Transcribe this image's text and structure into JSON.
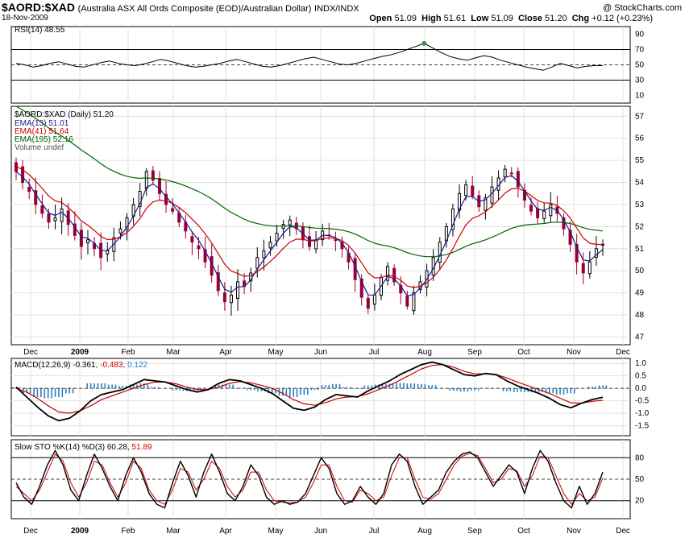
{
  "header": {
    "symbol": "$AORD:$XAD",
    "description": "(Australia ASX All Ords Composite (EOD)/Australian Dollar)",
    "exchange": "INDX/INDX",
    "date": "18-Nov-2009",
    "copyright": "@ StockCharts.com",
    "open_label": "Open",
    "open": "51.09",
    "high_label": "High",
    "high": "51.61",
    "low_label": "Low",
    "low": "51.09",
    "close_label": "Close",
    "close": "51.20",
    "chg_label": "Chg",
    "chg": "+0.12 (+0.23%)"
  },
  "colors": {
    "ema13": "#1a1a8c",
    "ema41": "#cc0000",
    "ema195": "#006400",
    "up": "#000000",
    "down": "#990033",
    "histogram": "#2a7fc0",
    "grid": "#e0e0e0"
  },
  "chart_data": [
    {
      "type": "line",
      "panel": "RSI",
      "legend": "RSI(14) 48.55",
      "ylim": [
        0,
        100
      ],
      "yticks": [
        10,
        30,
        50,
        70,
        90
      ],
      "guides": [
        30,
        50,
        70
      ],
      "series": [
        {
          "name": "RSI(14)",
          "values": [
            52,
            50,
            47,
            49,
            52,
            54,
            51,
            48,
            47,
            50,
            53,
            55,
            52,
            50,
            49,
            51,
            54,
            57,
            55,
            52,
            49,
            47,
            48,
            50,
            52,
            55,
            57,
            54,
            51,
            48,
            47,
            49,
            52,
            55,
            58,
            60,
            57,
            54,
            51,
            50,
            52,
            55,
            58,
            61,
            63,
            66,
            70,
            74,
            78,
            72,
            66,
            61,
            58,
            56,
            59,
            62,
            60,
            56,
            53,
            50,
            47,
            45,
            43,
            47,
            52,
            49,
            46,
            48,
            49,
            49
          ]
        }
      ]
    },
    {
      "type": "candlestick",
      "panel": "Price",
      "legend": "$AORD:$XAD (Daily) 51.20",
      "ylim": [
        47,
        57
      ],
      "yticks": [
        47,
        48,
        49,
        50,
        51,
        52,
        53,
        54,
        55,
        56,
        57
      ],
      "xlabels": [
        "Dec",
        "2009",
        "Feb",
        "Mar",
        "Apr",
        "May",
        "Jun",
        "Jul",
        "Aug",
        "Sep",
        "Oct",
        "Nov",
        "Dec"
      ],
      "closes": [
        54.5,
        54.0,
        53.6,
        53.0,
        52.6,
        52.2,
        52.4,
        52.8,
        52.1,
        51.6,
        51.1,
        51.4,
        51.0,
        50.6,
        50.9,
        51.5,
        51.9,
        52.4,
        53.0,
        53.6,
        54.5,
        54.1,
        53.5,
        53.0,
        52.7,
        52.2,
        51.8,
        51.3,
        51.0,
        50.4,
        49.8,
        49.1,
        48.6,
        48.9,
        49.5,
        49.3,
        49.9,
        50.6,
        50.9,
        51.3,
        51.7,
        52.1,
        52.3,
        51.9,
        51.4,
        51.1,
        51.4,
        51.8,
        51.6,
        51.4,
        51.0,
        50.4,
        49.6,
        48.8,
        48.3,
        48.9,
        49.7,
        50.2,
        49.5,
        49.0,
        48.4,
        49.0,
        49.5,
        50.0,
        50.6,
        51.3,
        52.0,
        52.8,
        53.5,
        53.9,
        53.4,
        52.9,
        53.3,
        53.8,
        54.2,
        54.6,
        54.4,
        53.8,
        53.2,
        52.7,
        52.4,
        52.7,
        53.0,
        52.6,
        51.9,
        51.2,
        50.4,
        49.9,
        50.4,
        51.0,
        51.2
      ],
      "series": [
        {
          "name": "EMA(13)",
          "legend": "EMA(13) 51.01"
        },
        {
          "name": "EMA(41)",
          "legend": "EMA(41) 51.64"
        },
        {
          "name": "EMA(195)",
          "legend": "EMA(195) 52.16"
        },
        {
          "name": "Volume",
          "legend": "Volume undef"
        }
      ]
    },
    {
      "type": "line",
      "panel": "MACD",
      "legend_main": "MACD(12,26,9)",
      "legend_v1": "-0.361,",
      "legend_v2": "-0.483,",
      "legend_v3": "0.122",
      "ylim": [
        -1.9,
        1.2
      ],
      "yticks": [
        -1.5,
        -1.0,
        -0.5,
        0.0,
        0.5,
        1.0
      ],
      "series": [
        {
          "name": "MACD",
          "values": [
            0.05,
            -0.35,
            -0.75,
            -1.1,
            -1.3,
            -1.2,
            -0.9,
            -0.5,
            -0.25,
            -0.15,
            -0.05,
            0.15,
            0.35,
            0.3,
            0.25,
            0.1,
            -0.05,
            -0.15,
            -0.05,
            0.2,
            0.35,
            0.3,
            0.15,
            0.0,
            -0.2,
            -0.5,
            -0.8,
            -0.88,
            -0.75,
            -0.45,
            -0.25,
            -0.3,
            -0.35,
            -0.1,
            0.1,
            0.3,
            0.55,
            0.75,
            0.95,
            1.05,
            0.95,
            0.75,
            0.55,
            0.5,
            0.6,
            0.55,
            0.3,
            0.1,
            -0.05,
            -0.2,
            -0.4,
            -0.65,
            -0.78,
            -0.6,
            -0.45,
            -0.36
          ]
        },
        {
          "name": "Signal",
          "values": [
            0.0,
            -0.15,
            -0.4,
            -0.7,
            -0.95,
            -1.0,
            -0.9,
            -0.7,
            -0.45,
            -0.3,
            -0.15,
            0.0,
            0.15,
            0.25,
            0.25,
            0.18,
            0.05,
            -0.05,
            -0.05,
            0.05,
            0.2,
            0.27,
            0.22,
            0.12,
            0.0,
            -0.2,
            -0.45,
            -0.62,
            -0.68,
            -0.58,
            -0.42,
            -0.35,
            -0.33,
            -0.22,
            -0.05,
            0.12,
            0.33,
            0.55,
            0.78,
            0.92,
            0.95,
            0.85,
            0.68,
            0.58,
            0.58,
            0.55,
            0.42,
            0.25,
            0.1,
            -0.05,
            -0.2,
            -0.4,
            -0.58,
            -0.6,
            -0.52,
            -0.48
          ]
        }
      ]
    },
    {
      "type": "line",
      "panel": "Slow STO",
      "legend_main": "Slow STO %K(14) %D(3)",
      "legend_v1": "60.28,",
      "legend_v2": "51.89",
      "ylim": [
        0,
        100
      ],
      "yticks": [
        20,
        50,
        80
      ],
      "guides": [
        20,
        50,
        80
      ],
      "series": [
        {
          "name": "%K(14)",
          "values": [
            45,
            25,
            15,
            40,
            70,
            90,
            70,
            35,
            20,
            55,
            85,
            65,
            40,
            20,
            55,
            80,
            60,
            30,
            15,
            10,
            45,
            75,
            55,
            25,
            60,
            85,
            60,
            30,
            20,
            40,
            70,
            55,
            25,
            15,
            20,
            15,
            18,
            30,
            55,
            80,
            65,
            30,
            15,
            20,
            40,
            25,
            15,
            30,
            70,
            85,
            75,
            40,
            15,
            25,
            35,
            60,
            75,
            85,
            88,
            80,
            60,
            40,
            55,
            70,
            60,
            30,
            65,
            90,
            75,
            45,
            20,
            10,
            40,
            15,
            30,
            60
          ]
        },
        {
          "name": "%D(3)",
          "values": [
            40,
            30,
            20,
            35,
            60,
            85,
            75,
            45,
            25,
            45,
            75,
            70,
            45,
            25,
            45,
            75,
            65,
            35,
            20,
            15,
            35,
            65,
            60,
            35,
            50,
            75,
            65,
            40,
            25,
            35,
            60,
            60,
            35,
            20,
            18,
            17,
            18,
            25,
            45,
            70,
            70,
            40,
            20,
            18,
            35,
            30,
            20,
            25,
            55,
            80,
            80,
            50,
            25,
            22,
            30,
            50,
            70,
            82,
            86,
            83,
            65,
            45,
            50,
            65,
            62,
            40,
            55,
            82,
            80,
            55,
            30,
            15,
            30,
            20,
            25,
            52
          ]
        }
      ]
    }
  ]
}
